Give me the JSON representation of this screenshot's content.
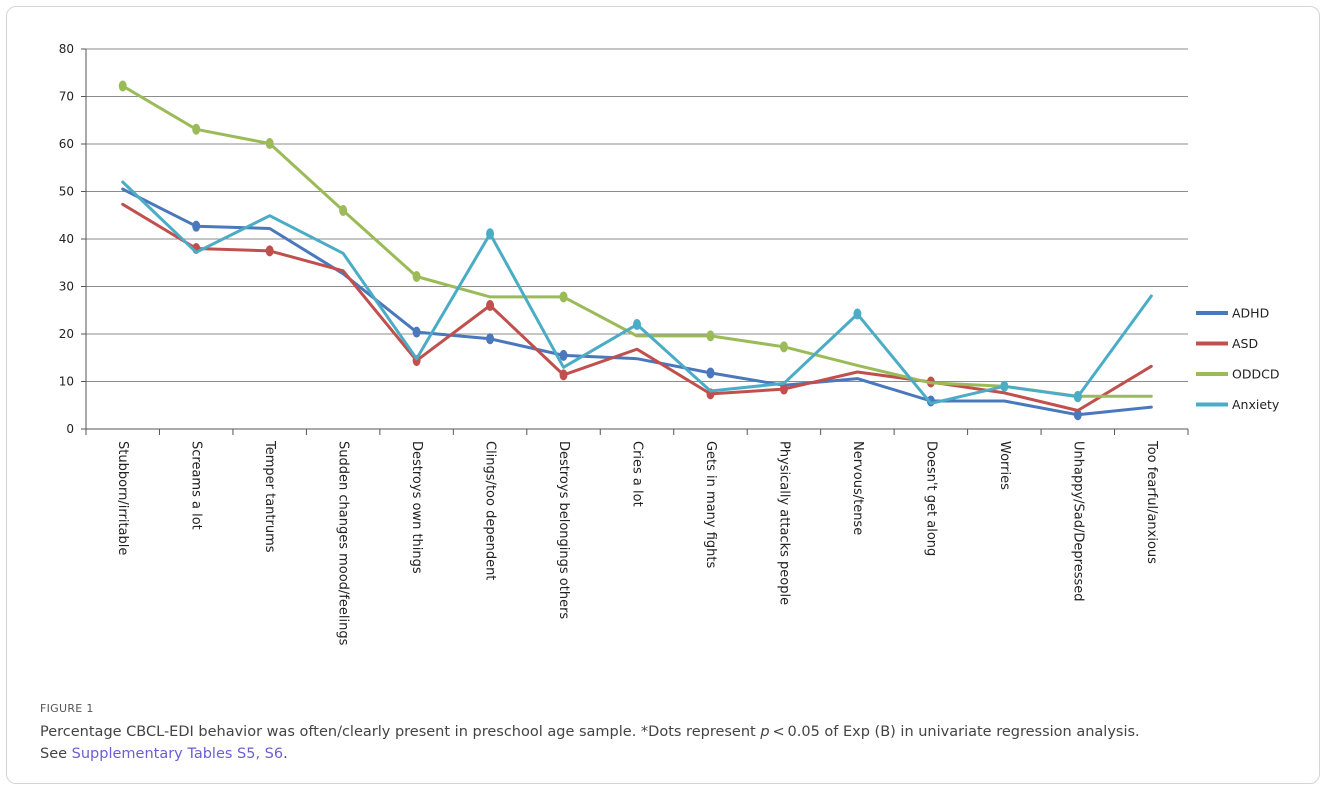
{
  "figure": {
    "label": "FIGURE 1",
    "caption_part1": "Percentage CBCL-EDI behavior was often/clearly present in preschool age sample. *Dots represent ",
    "caption_p": "p",
    "caption_part2": " < 0.05 of Exp (B) in univariate regression analysis.",
    "caption_line2_prefix": "See ",
    "caption_link": "Supplementary Tables S5, S6",
    "caption_line2_suffix": "."
  },
  "colors": {
    "ADHD": "#4a78bd",
    "ASD": "#c0504d",
    "ODDCD": "#9bbb59",
    "Anxiety": "#4bacc6",
    "grid": "#8c8c8c",
    "axis": "#555555"
  },
  "chart_data": {
    "type": "line",
    "ylim": [
      0,
      80
    ],
    "yticks": [
      0,
      10,
      20,
      30,
      40,
      50,
      60,
      70,
      80
    ],
    "grid": true,
    "legend_position": "right",
    "categories": [
      "Stubborn/irritable",
      "Screams a lot",
      "Temper tantrums",
      "Sudden changes mood/feelings",
      "Destroys own things",
      "Clings/too dependent",
      "Destroys belongings others",
      "Cries a lot",
      "Gets in many fights",
      "Physically attacks people",
      "Nervous/tense",
      "Doesn't get along",
      "Worries",
      "Unhappy/Sad/Depressed",
      "Too fearful/anxious"
    ],
    "series": [
      {
        "name": "ADHD",
        "values": [
          50.5,
          42.7,
          42.2,
          32.7,
          20.4,
          19.0,
          15.5,
          14.8,
          11.8,
          9.2,
          10.6,
          5.9,
          5.9,
          3.0,
          4.6
        ],
        "dots": [
          1,
          4,
          5,
          6,
          8,
          11,
          13
        ]
      },
      {
        "name": "ASD",
        "values": [
          47.3,
          38.0,
          37.5,
          33.3,
          14.4,
          26.0,
          11.4,
          16.8,
          7.4,
          8.4,
          12.0,
          9.9,
          7.6,
          3.9,
          13.2
        ],
        "dots": [
          1,
          2,
          4,
          5,
          6,
          8,
          9,
          11
        ]
      },
      {
        "name": "ODDCD",
        "values": [
          72.2,
          63.1,
          60.1,
          46.0,
          32.1,
          27.8,
          27.8,
          19.6,
          19.6,
          17.3,
          13.4,
          9.7,
          9.0,
          6.9,
          6.9
        ],
        "dots": [
          0,
          1,
          2,
          3,
          4,
          6,
          8,
          9,
          13
        ]
      },
      {
        "name": "Anxiety",
        "values": [
          52.0,
          37.2,
          44.9,
          37.0,
          14.8,
          41.1,
          13.0,
          22.0,
          8.0,
          9.6,
          24.2,
          5.4,
          9.0,
          6.8,
          28.0
        ],
        "dots": [
          5,
          7,
          10,
          12,
          13
        ]
      }
    ]
  }
}
